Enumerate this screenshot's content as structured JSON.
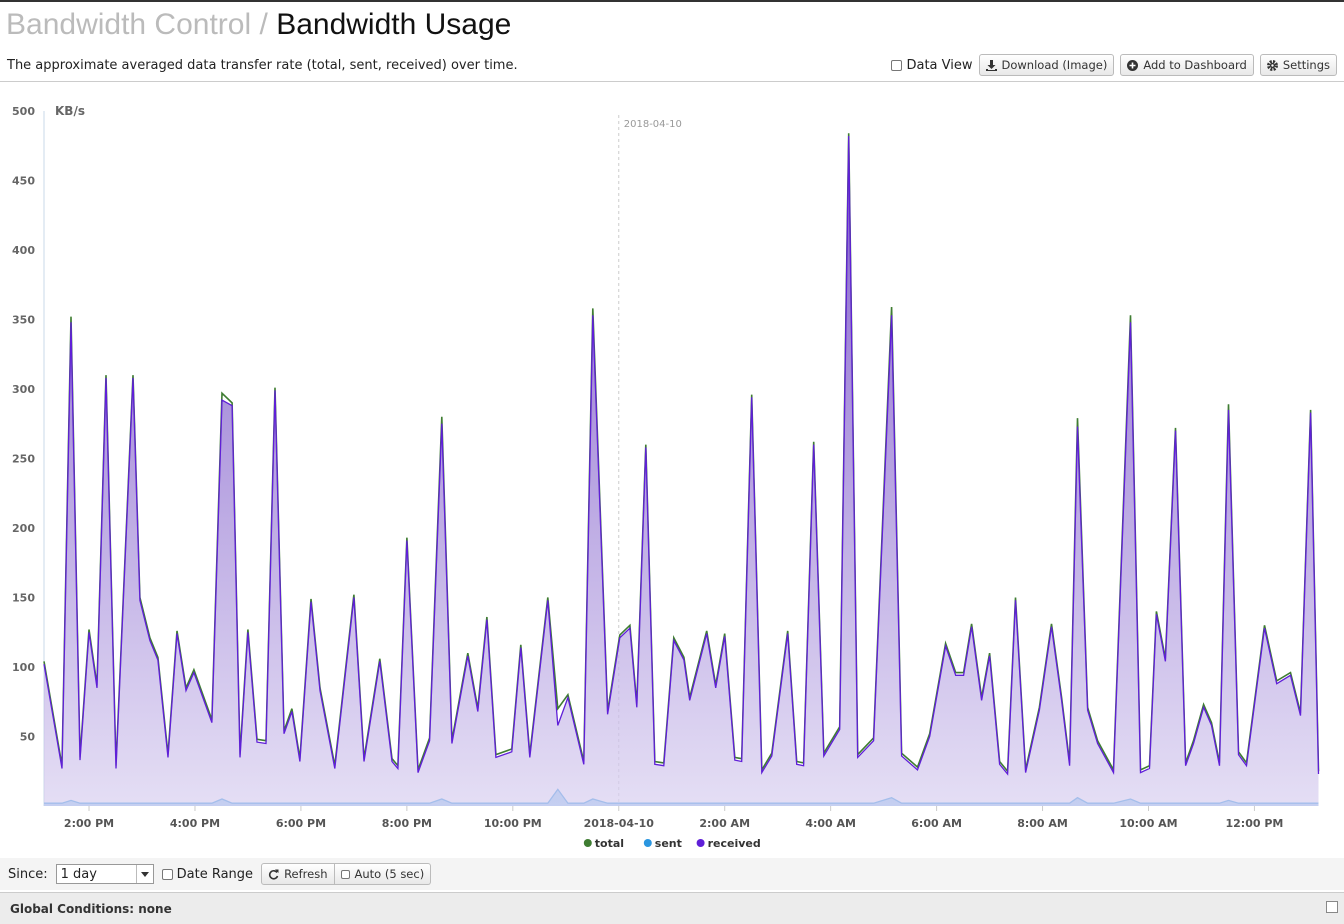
{
  "header": {
    "parent": "Bandwidth Control",
    "separator": "/",
    "title": "Bandwidth Usage",
    "description": "The approximate averaged data transfer rate (total, sent, received) over time."
  },
  "toolbar": {
    "data_view": "Data View",
    "download": "Download (Image)",
    "add_to_dashboard": "Add to Dashboard",
    "settings": "Settings"
  },
  "controls": {
    "since_label": "Since:",
    "since_value": "1 day",
    "date_range": "Date Range",
    "refresh": "Refresh",
    "auto": "Auto (5 sec)"
  },
  "global_conditions": "Global Conditions: none",
  "chart_data": {
    "type": "area",
    "y_label": "KB/s",
    "ylim": [
      0,
      500
    ],
    "yticks": [
      50,
      100,
      150,
      200,
      250,
      300,
      350,
      400,
      450,
      500
    ],
    "xlim": [
      13.15,
      37.2
    ],
    "xticks": [
      {
        "value": 14,
        "label": "2:00 PM"
      },
      {
        "value": 16,
        "label": "4:00 PM"
      },
      {
        "value": 18,
        "label": "6:00 PM"
      },
      {
        "value": 20,
        "label": "8:00 PM"
      },
      {
        "value": 22,
        "label": "10:00 PM"
      },
      {
        "value": 24,
        "label": "2018-04-10"
      },
      {
        "value": 26,
        "label": "2:00 AM"
      },
      {
        "value": 28,
        "label": "4:00 AM"
      },
      {
        "value": 30,
        "label": "6:00 AM"
      },
      {
        "value": 32,
        "label": "8:00 AM"
      },
      {
        "value": 34,
        "label": "10:00 AM"
      },
      {
        "value": 36,
        "label": "12:00 PM"
      }
    ],
    "grid": true,
    "legend": "bottom",
    "annotations": [
      {
        "x": 24,
        "text": "2018-04-10"
      }
    ],
    "x": [
      13.15,
      13.49,
      13.66,
      13.83,
      14.0,
      14.15,
      14.32,
      14.51,
      14.83,
      14.96,
      15.15,
      15.3,
      15.49,
      15.66,
      15.83,
      15.98,
      16.32,
      16.51,
      16.7,
      16.85,
      17.0,
      17.17,
      17.34,
      17.51,
      17.68,
      17.83,
      17.98,
      18.19,
      18.36,
      18.64,
      19.0,
      19.19,
      19.49,
      19.72,
      19.83,
      20.0,
      20.21,
      20.43,
      20.66,
      20.85,
      21.15,
      21.34,
      21.51,
      21.68,
      21.98,
      22.15,
      22.32,
      22.66,
      22.85,
      23.04,
      23.34,
      23.51,
      23.79,
      24.02,
      24.21,
      24.34,
      24.51,
      24.68,
      24.85,
      25.04,
      25.23,
      25.34,
      25.66,
      25.83,
      26.0,
      26.19,
      26.32,
      26.51,
      26.7,
      26.89,
      27.19,
      27.36,
      27.49,
      27.68,
      27.87,
      28.17,
      28.34,
      28.51,
      28.81,
      29.15,
      29.34,
      29.64,
      29.87,
      30.17,
      30.36,
      30.51,
      30.66,
      30.85,
      31.0,
      31.19,
      31.34,
      31.49,
      31.68,
      31.94,
      32.17,
      32.36,
      32.51,
      32.66,
      32.85,
      33.04,
      33.34,
      33.66,
      33.85,
      34.02,
      34.15,
      34.32,
      34.51,
      34.7,
      34.85,
      35.04,
      35.19,
      35.34,
      35.51,
      35.7,
      35.85,
      36.19,
      36.42,
      36.68,
      36.87,
      37.06,
      37.21
    ],
    "series": [
      {
        "name": "total",
        "color": "#3f7d32",
        "values": [
          104,
          29,
          352,
          35,
          127,
          87,
          310,
          29,
          310,
          150,
          121,
          107,
          37,
          126,
          85,
          98,
          62,
          297,
          290,
          37,
          127,
          48,
          47,
          301,
          54,
          70,
          34,
          149,
          85,
          29,
          152,
          34,
          106,
          34,
          29,
          193,
          26,
          49,
          280,
          47,
          110,
          70,
          136,
          37,
          41,
          116,
          37,
          150,
          70,
          80,
          32,
          358,
          68,
          123,
          130,
          73,
          260,
          32,
          31,
          121,
          107,
          78,
          126,
          87,
          124,
          35,
          34,
          296,
          26,
          38,
          126,
          32,
          31,
          262,
          38,
          57,
          484,
          37,
          49,
          359,
          38,
          28,
          52,
          117,
          96,
          96,
          131,
          78,
          110,
          32,
          25,
          150,
          26,
          71,
          131,
          78,
          31,
          279,
          71,
          47,
          26,
          353,
          26,
          29,
          140,
          106,
          272,
          31,
          47,
          73,
          60,
          31,
          289,
          39,
          31,
          130,
          90,
          96,
          67,
          285,
          25
        ]
      },
      {
        "name": "sent",
        "color": "#2a96e0",
        "values": [
          2,
          2,
          4,
          2,
          2,
          2,
          2,
          2,
          2,
          2,
          2,
          2,
          2,
          2,
          2,
          2,
          2,
          5,
          2,
          2,
          2,
          2,
          2,
          2,
          2,
          2,
          2,
          2,
          2,
          2,
          2,
          2,
          2,
          2,
          2,
          2,
          2,
          2,
          5,
          2,
          2,
          2,
          2,
          2,
          2,
          2,
          2,
          2,
          12,
          2,
          2,
          5,
          2,
          2,
          2,
          2,
          2,
          2,
          2,
          2,
          2,
          2,
          2,
          2,
          2,
          2,
          2,
          2,
          2,
          2,
          2,
          2,
          2,
          2,
          2,
          2,
          2,
          2,
          2,
          6,
          2,
          2,
          2,
          2,
          2,
          2,
          2,
          2,
          2,
          2,
          2,
          2,
          2,
          2,
          2,
          2,
          2,
          6,
          2,
          2,
          2,
          5,
          2,
          2,
          2,
          2,
          2,
          2,
          2,
          2,
          2,
          2,
          4,
          2,
          2,
          2,
          2,
          2,
          2,
          2,
          2
        ]
      },
      {
        "name": "received",
        "color": "#5f1fd8",
        "values": [
          102,
          27,
          348,
          33,
          125,
          85,
          308,
          27,
          308,
          148,
          119,
          105,
          35,
          124,
          83,
          96,
          60,
          292,
          288,
          35,
          125,
          46,
          45,
          299,
          52,
          68,
          32,
          147,
          83,
          27,
          150,
          32,
          104,
          32,
          27,
          191,
          24,
          47,
          275,
          45,
          108,
          68,
          134,
          35,
          39,
          114,
          35,
          148,
          58,
          78,
          30,
          353,
          66,
          121,
          128,
          71,
          258,
          30,
          29,
          119,
          105,
          76,
          124,
          85,
          122,
          33,
          32,
          294,
          24,
          36,
          124,
          30,
          29,
          260,
          36,
          55,
          482,
          35,
          47,
          353,
          36,
          26,
          50,
          115,
          94,
          94,
          129,
          76,
          108,
          30,
          23,
          148,
          24,
          69,
          129,
          76,
          29,
          273,
          69,
          45,
          24,
          348,
          24,
          27,
          138,
          104,
          270,
          29,
          45,
          71,
          58,
          29,
          285,
          37,
          29,
          128,
          88,
          94,
          65,
          283,
          23
        ]
      }
    ]
  }
}
